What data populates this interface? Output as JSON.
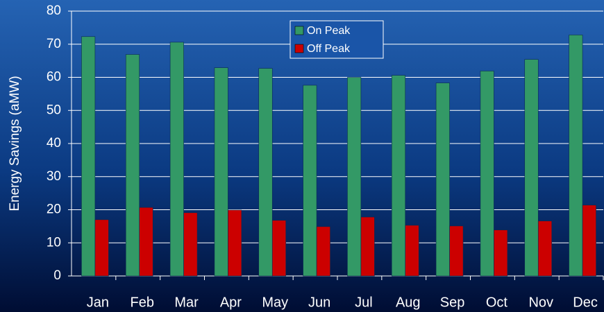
{
  "chart_data": {
    "type": "bar",
    "y_label": "Energy Savings (aMW)",
    "categories": [
      "Jan",
      "Feb",
      "Mar",
      "Apr",
      "May",
      "Jun",
      "Jul",
      "Aug",
      "Sep",
      "Oct",
      "Nov",
      "Dec"
    ],
    "series": [
      {
        "name": "On Peak",
        "color": "#339966",
        "values": [
          72.3,
          66.9,
          70.6,
          62.9,
          62.7,
          57.6,
          60,
          60.6,
          58.3,
          61.9,
          65.4,
          72.8
        ]
      },
      {
        "name": "Off Peak",
        "color": "#cc0000",
        "values": [
          17,
          20.7,
          19.1,
          19.9,
          16.8,
          14.9,
          17.8,
          15.3,
          15.1,
          13.9,
          16.6,
          21.4
        ]
      }
    ],
    "ylim": [
      0,
      80
    ],
    "yticks": [
      0,
      10,
      20,
      30,
      40,
      50,
      60,
      70,
      80
    ],
    "grid": true,
    "legend": "top"
  }
}
